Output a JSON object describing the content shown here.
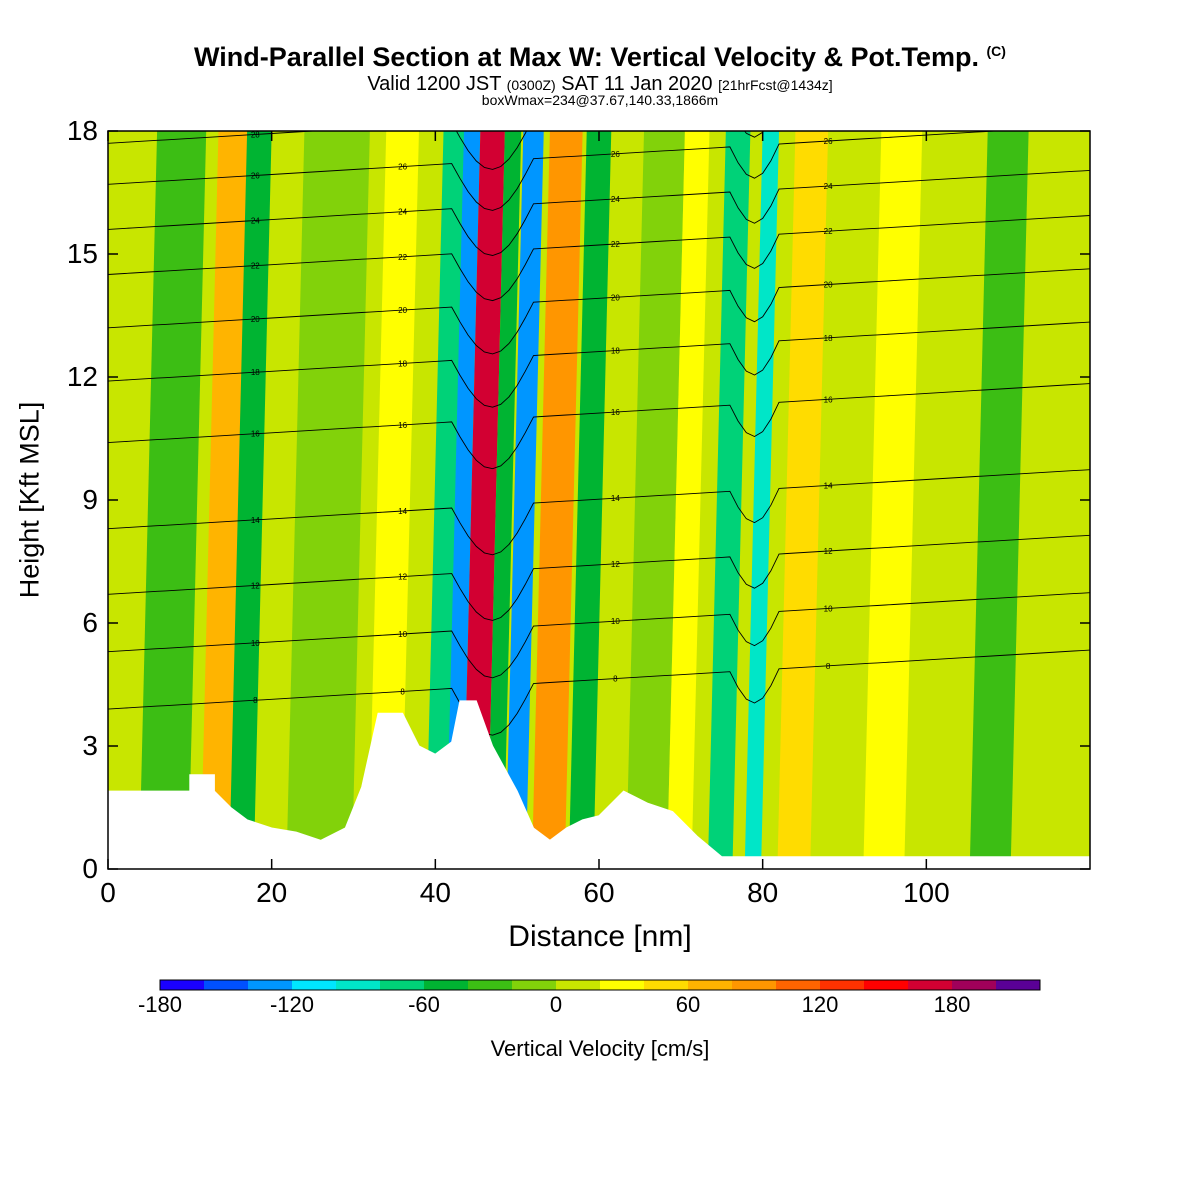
{
  "header": {
    "title": "Wind-Parallel Section at Max W: Vertical Velocity & Pot.Temp.",
    "copyright": "(C)",
    "valid_prefix": "Valid 1200 JST",
    "valid_utc": "(0300Z)",
    "valid_date": "SAT 11 Jan 2020",
    "forecast": "[21hrFcst@1434z]",
    "boxinfo": "boxWmax=234@37.67,140.33,1866m"
  },
  "chart_data": {
    "type": "heatmap",
    "title": "Wind-Parallel Section at Max W: Vertical Velocity & Pot.Temp.",
    "xlabel": "Distance [nm]",
    "ylabel": "Height [Kft MSL]",
    "xlim": [
      0,
      120
    ],
    "ylim": [
      0,
      18
    ],
    "xticks": [
      "0",
      "20",
      "40",
      "60",
      "80",
      "100"
    ],
    "yticks": [
      "0",
      "3",
      "6",
      "9",
      "12",
      "15",
      "18"
    ],
    "colorbar": {
      "label": "Vertical Velocity [cm/s]",
      "ticks": [
        "-180",
        "-120",
        "-60",
        "0",
        "60",
        "120",
        "180"
      ],
      "range": [
        -180,
        220
      ],
      "step": 20,
      "colors": [
        "#1a00ff",
        "#0050ff",
        "#0096ff",
        "#00e6ff",
        "#00e6c8",
        "#00d278",
        "#00b432",
        "#3cbe14",
        "#82d20a",
        "#c8e600",
        "#ffff00",
        "#ffdc00",
        "#ffb400",
        "#ff9600",
        "#ff6400",
        "#ff3200",
        "#ff0000",
        "#d20032",
        "#a0005a",
        "#5a0096"
      ]
    },
    "vertical_velocity_bands": [
      {
        "x": 9,
        "w": 6,
        "w_cm_s": -30
      },
      {
        "x": 15.5,
        "w": 4,
        "w_cm_s": 70
      },
      {
        "x": 18.5,
        "w": 3,
        "w_cm_s": -60
      },
      {
        "x": 28,
        "w": 8,
        "w_cm_s": -20
      },
      {
        "x": 36,
        "w": 4,
        "w_cm_s": 20
      },
      {
        "x": 42.5,
        "w": 3,
        "w_cm_s": -70
      },
      {
        "x": 44.5,
        "w": 2,
        "w_cm_s": -130
      },
      {
        "x": 47,
        "w": 3,
        "w_cm_s": 170
      },
      {
        "x": 49.5,
        "w": 2,
        "w_cm_s": -60
      },
      {
        "x": 52,
        "w": 2.5,
        "w_cm_s": -130
      },
      {
        "x": 56,
        "w": 4,
        "w_cm_s": 80
      },
      {
        "x": 60,
        "w": 3,
        "w_cm_s": -60
      },
      {
        "x": 68,
        "w": 5,
        "w_cm_s": -20
      },
      {
        "x": 72,
        "w": 3,
        "w_cm_s": 30
      },
      {
        "x": 77,
        "w": 3,
        "w_cm_s": -70
      },
      {
        "x": 81,
        "w": 2,
        "w_cm_s": -100
      },
      {
        "x": 86,
        "w": 4,
        "w_cm_s": 50
      },
      {
        "x": 97,
        "w": 5,
        "w_cm_s": 20
      },
      {
        "x": 110,
        "w": 5,
        "w_cm_s": -30
      }
    ],
    "theta_contours": [
      {
        "label": "8",
        "y0": 3.9
      },
      {
        "label": "10",
        "y0": 5.3
      },
      {
        "label": "12",
        "y0": 6.7
      },
      {
        "label": "14",
        "y0": 8.3
      },
      {
        "label": "16",
        "y0": 10.4
      },
      {
        "label": "18",
        "y0": 11.9
      },
      {
        "label": "20",
        "y0": 13.2
      },
      {
        "label": "22",
        "y0": 14.5
      },
      {
        "label": "24",
        "y0": 15.6
      },
      {
        "label": "26",
        "y0": 16.7
      },
      {
        "label": "28",
        "y0": 17.7
      }
    ],
    "terrain": [
      [
        0,
        1.9
      ],
      [
        10,
        1.9
      ],
      [
        10,
        2.3
      ],
      [
        13,
        2.3
      ],
      [
        13,
        1.9
      ],
      [
        15,
        1.5
      ],
      [
        17,
        1.2
      ],
      [
        20,
        1.0
      ],
      [
        23,
        0.9
      ],
      [
        26,
        0.7
      ],
      [
        29,
        1.0
      ],
      [
        31,
        2.0
      ],
      [
        33,
        3.8
      ],
      [
        36,
        3.8
      ],
      [
        38,
        3.0
      ],
      [
        40,
        2.8
      ],
      [
        42,
        3.1
      ],
      [
        43,
        4.1
      ],
      [
        45,
        4.1
      ],
      [
        47,
        3.0
      ],
      [
        50,
        1.9
      ],
      [
        52,
        1.0
      ],
      [
        54,
        0.7
      ],
      [
        56,
        1.0
      ],
      [
        58,
        1.2
      ],
      [
        60,
        1.3
      ],
      [
        63,
        1.9
      ],
      [
        66,
        1.6
      ],
      [
        69,
        1.4
      ],
      [
        72,
        0.8
      ],
      [
        75,
        0.3
      ],
      [
        120,
        0.3
      ]
    ]
  }
}
